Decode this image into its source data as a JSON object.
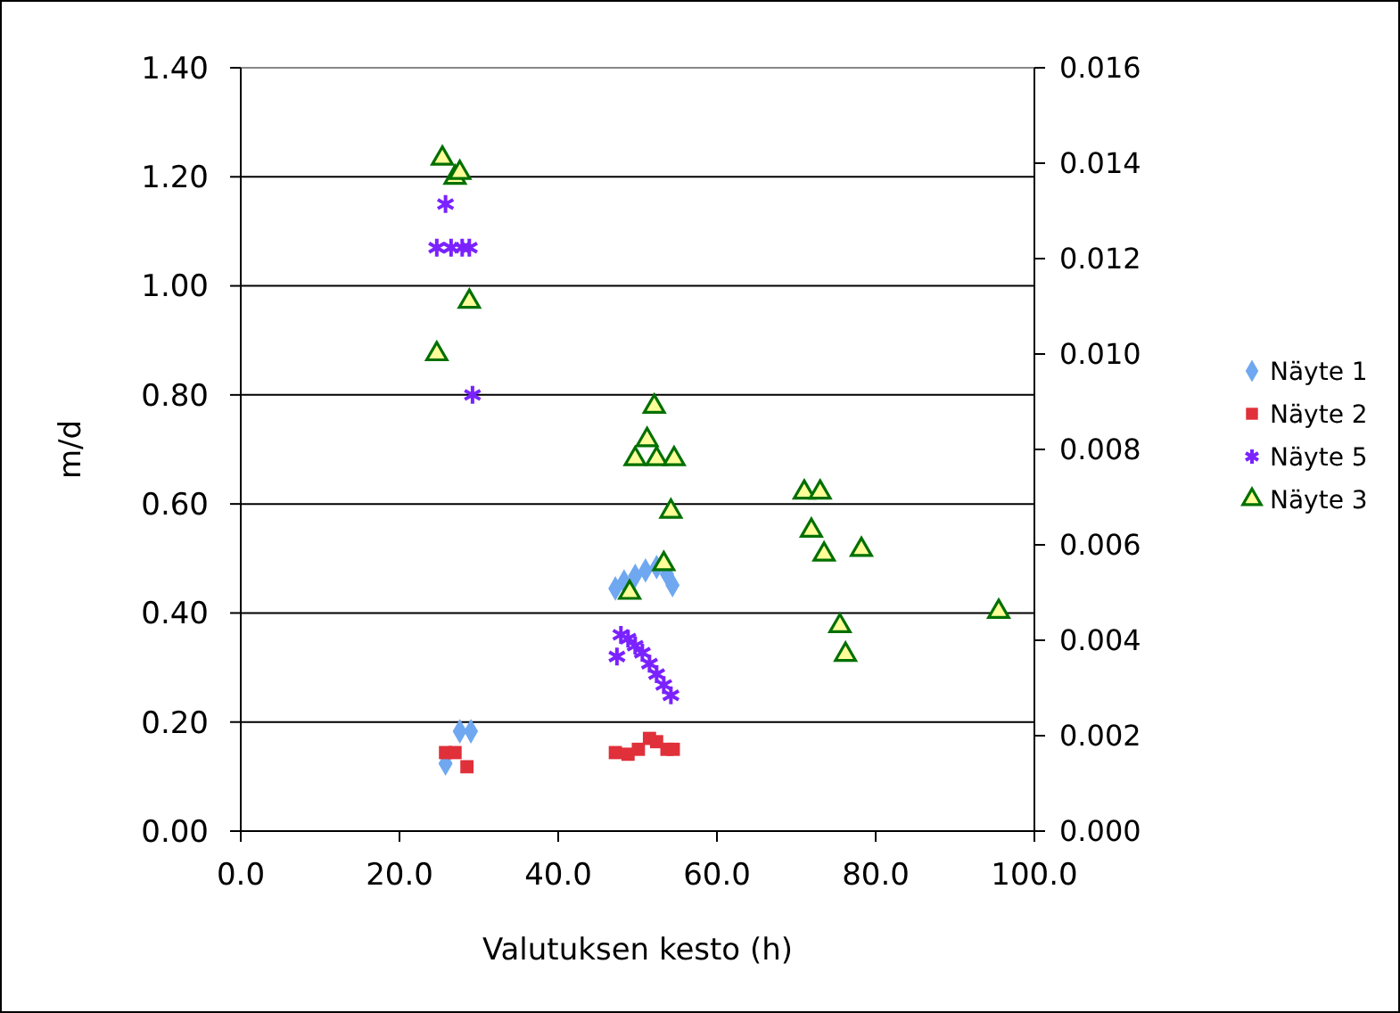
{
  "chart_data": {
    "type": "scatter",
    "xlabel": "Valutuksen kesto (h)",
    "ylabel": "m/d",
    "xlim": [
      0,
      100
    ],
    "xticks": [
      {
        "value": 0,
        "label": "0.0"
      },
      {
        "value": 20,
        "label": "20.0"
      },
      {
        "value": 40,
        "label": "40.0"
      },
      {
        "value": 60,
        "label": "60.0"
      },
      {
        "value": 80,
        "label": "80.0"
      },
      {
        "value": 100,
        "label": "100.0"
      }
    ],
    "ylim": [
      0,
      1.4
    ],
    "yticks": [
      {
        "value": 0,
        "label": "0.00"
      },
      {
        "value": 0.2,
        "label": "0.20"
      },
      {
        "value": 0.4,
        "label": "0.40"
      },
      {
        "value": 0.6,
        "label": "0.60"
      },
      {
        "value": 0.8,
        "label": "0.80"
      },
      {
        "value": 1,
        "label": "1.00"
      },
      {
        "value": 1.2,
        "label": "1.20"
      },
      {
        "value": 1.4,
        "label": "1.40"
      }
    ],
    "y2lim": [
      0,
      0.016
    ],
    "y2ticks": [
      {
        "value": 0,
        "label": "0.000"
      },
      {
        "value": 0.002,
        "label": "0.002"
      },
      {
        "value": 0.004,
        "label": "0.004"
      },
      {
        "value": 0.006,
        "label": "0.006"
      },
      {
        "value": 0.008,
        "label": "0.008"
      },
      {
        "value": 0.01,
        "label": "0.010"
      },
      {
        "value": 0.012,
        "label": "0.012"
      },
      {
        "value": 0.014,
        "label": "0.014"
      },
      {
        "value": 0.016,
        "label": "0.016"
      }
    ],
    "grid": "y",
    "legend": "right",
    "series": [
      {
        "name": "Näyte 1",
        "color": "#6fa8f0",
        "marker": "diamond",
        "x": [
          25.8,
          27.6,
          29,
          47.2,
          48.3,
          49.7,
          51,
          52.4,
          53.7,
          54.4
        ],
        "values": [
          0.124,
          0.183,
          0.183,
          0.445,
          0.458,
          0.468,
          0.478,
          0.484,
          0.471,
          0.451
        ]
      },
      {
        "name": "Näyte 2",
        "color": "#e0303a",
        "marker": "square",
        "x": [
          25.8,
          27,
          28.5,
          47.2,
          48.8,
          50.1,
          51.5,
          52.4,
          53.7,
          54.5
        ],
        "values": [
          0.144,
          0.144,
          0.118,
          0.144,
          0.141,
          0.15,
          0.17,
          0.164,
          0.15,
          0.15
        ]
      },
      {
        "name": "Näyte 5",
        "color": "#7a22ff",
        "marker": "cross",
        "x": [
          25.8,
          24.7,
          26.5,
          27.9,
          28.8,
          29.2,
          47.4,
          47.9,
          48.8,
          49.7,
          50.6,
          51.5,
          52.4,
          53.3,
          54.2
        ],
        "values": [
          1.15,
          1.07,
          1.07,
          1.07,
          1.07,
          0.8,
          0.32,
          0.36,
          0.353,
          0.34,
          0.327,
          0.307,
          0.288,
          0.268,
          0.249
        ]
      },
      {
        "name": "Näyte 3",
        "color": "#007000",
        "marker": "triangle",
        "axis": "y2",
        "x": [
          25.4,
          27,
          27.6,
          28.8,
          24.7,
          52.1,
          51.2,
          49.7,
          52.4,
          54.6,
          54.2,
          53.3,
          49,
          71,
          73,
          71.9,
          73.5,
          78.2,
          75.5,
          76.2,
          95.5
        ],
        "values": [
          0.0141,
          0.0137,
          0.0138,
          0.0111,
          0.01,
          0.0089,
          0.0082,
          0.0078,
          0.0078,
          0.0078,
          0.0067,
          0.0056,
          0.005,
          0.0071,
          0.0071,
          0.0063,
          0.0058,
          0.0059,
          0.0043,
          0.0037,
          0.0046
        ]
      }
    ]
  }
}
